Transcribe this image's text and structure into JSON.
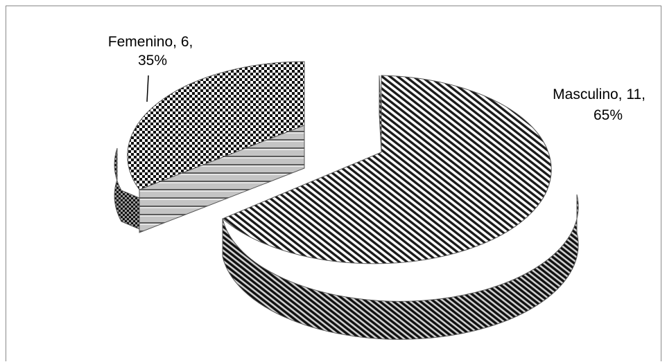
{
  "chart_data": {
    "type": "pie",
    "style": "3d-exploded",
    "slices": [
      {
        "name": "Masculino",
        "value": 11,
        "percent": "65%",
        "label_line1": "Masculino, 11,",
        "label_line2": "65%",
        "pattern": "diagonal-stripes"
      },
      {
        "name": "Femenino",
        "value": 6,
        "percent": "35%",
        "label_line1": "Femenino, 6,",
        "label_line2": "35%",
        "pattern": "checkerboard"
      }
    ],
    "legend": "none",
    "colors": {
      "ink": "#000000",
      "paper": "#ffffff",
      "frame": "#888888"
    }
  }
}
